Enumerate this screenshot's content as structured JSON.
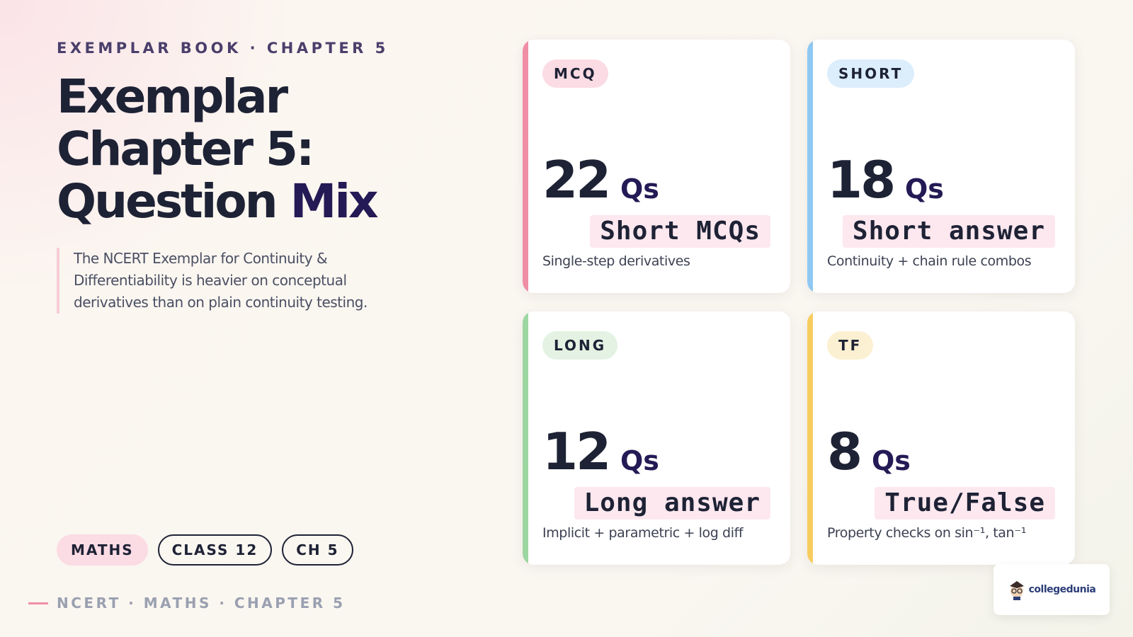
{
  "eyebrow": "EXEMPLAR BOOK · CHAPTER 5",
  "title": {
    "main": "Exemplar Chapter 5: Question",
    "accent": "Mix"
  },
  "description": "The NCERT Exemplar for Continuity & Differentiability is heavier on conceptual derivatives than on plain continuity testing.",
  "tags": [
    "MATHS",
    "CLASS 12",
    "CH 5"
  ],
  "footer": "NCERT · MATHS · CHAPTER 5",
  "cards": [
    {
      "tag": "MCQ",
      "count": 22,
      "unit": "Qs",
      "label": "Short MCQs",
      "note": "Single-step derivatives"
    },
    {
      "tag": "SHORT",
      "count": 18,
      "unit": "Qs",
      "label": "Short answer",
      "note": "Continuity + chain rule combos"
    },
    {
      "tag": "LONG",
      "count": 12,
      "unit": "Qs",
      "label": "Long answer",
      "note": "Implicit + parametric + log diff"
    },
    {
      "tag": "TF",
      "count": 8,
      "unit": "Qs",
      "label": "True/False",
      "note": "Property checks on sin⁻¹, tan⁻¹"
    }
  ],
  "logo": "collegedunia"
}
